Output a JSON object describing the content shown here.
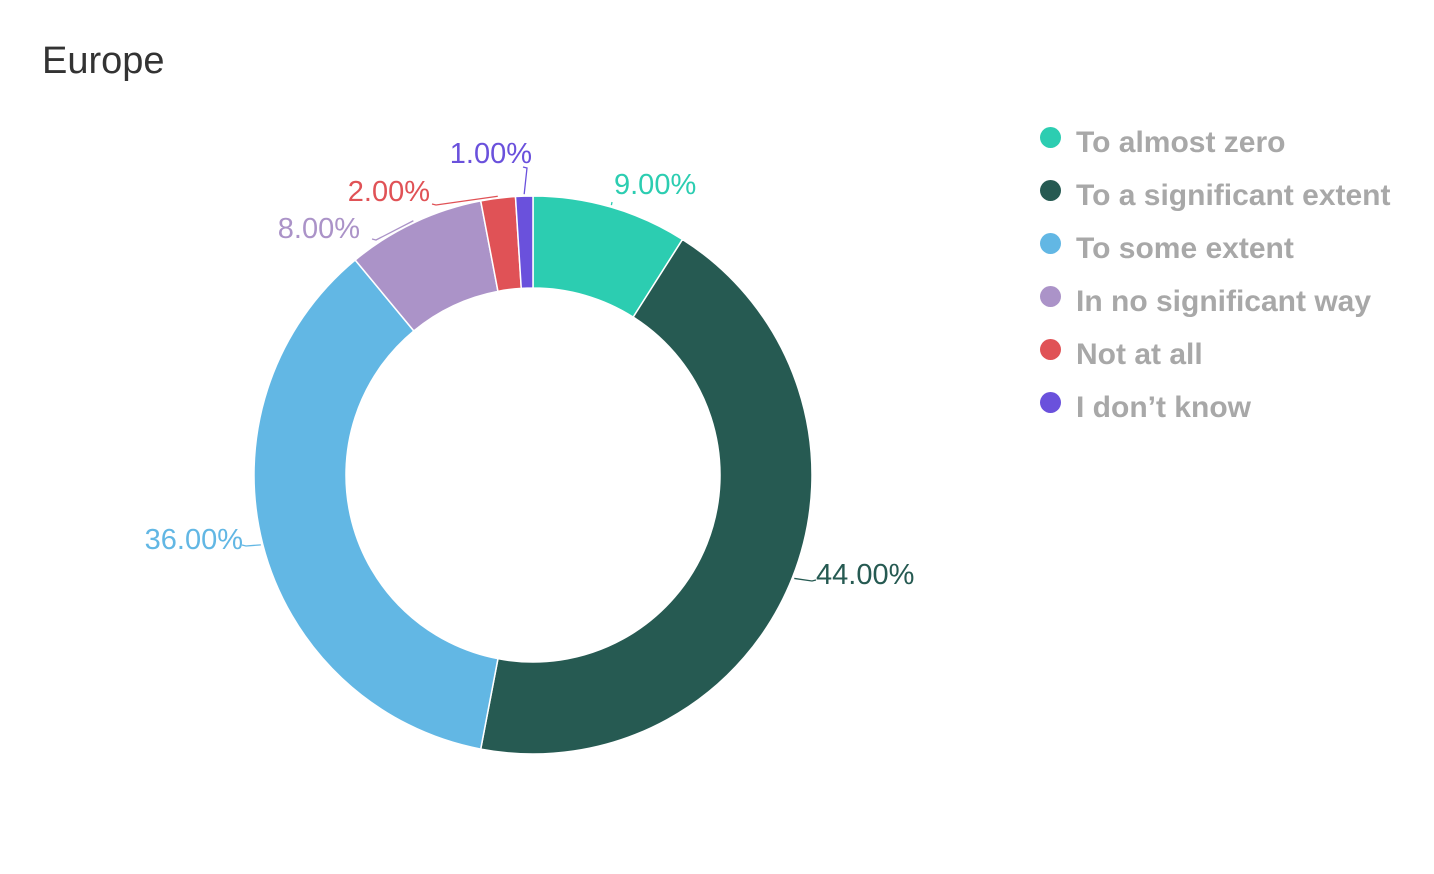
{
  "chart_data": {
    "type": "pie",
    "title": "Europe",
    "donut": true,
    "legend_position": "right",
    "value_format": "percent",
    "slices": [
      {
        "label": "To almost zero",
        "value": 9.0,
        "display": "9.00%",
        "color": "#2ccdb1"
      },
      {
        "label": "To a significant extent",
        "value": 44.0,
        "display": "44.00%",
        "color": "#265a52"
      },
      {
        "label": "To some extent",
        "value": 36.0,
        "display": "36.00%",
        "color": "#62b7e4"
      },
      {
        "label": "In no significant way",
        "value": 8.0,
        "display": "8.00%",
        "color": "#ab93c8"
      },
      {
        "label": "Not at all",
        "value": 2.0,
        "display": "2.00%",
        "color": "#e05256"
      },
      {
        "label": "I don’t know",
        "value": 1.0,
        "display": "1.00%",
        "color": "#6a51dc"
      }
    ]
  }
}
